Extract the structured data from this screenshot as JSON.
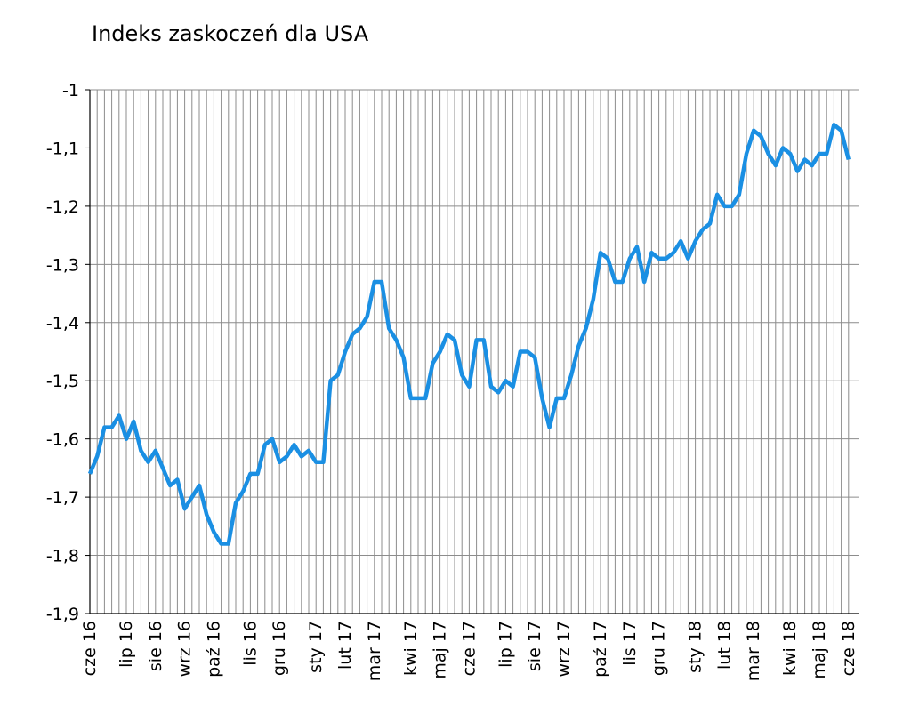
{
  "chart_data": {
    "type": "line",
    "title": "Indeks zaskoczeń dla USA",
    "categories": [
      "cze 16",
      null,
      null,
      null,
      null,
      "lip 16",
      null,
      null,
      null,
      "sie 16",
      null,
      null,
      null,
      "wrz 16",
      null,
      null,
      null,
      "paź 16",
      null,
      null,
      null,
      null,
      "lis 16",
      null,
      null,
      null,
      "gru 16",
      null,
      null,
      null,
      null,
      "sty 17",
      null,
      null,
      null,
      "lut 17",
      null,
      null,
      null,
      "mar 17",
      null,
      null,
      null,
      null,
      "kwi 17",
      null,
      null,
      null,
      "maj 17",
      null,
      null,
      null,
      "cze 17",
      null,
      null,
      null,
      null,
      "lip 17",
      null,
      null,
      null,
      "sie 17",
      null,
      null,
      null,
      "wrz 17",
      null,
      null,
      null,
      null,
      "paź 17",
      null,
      null,
      null,
      "lis 17",
      null,
      null,
      null,
      "gru 17",
      null,
      null,
      null,
      null,
      "sty 18",
      null,
      null,
      null,
      "lut 18",
      null,
      null,
      null,
      "mar 18",
      null,
      null,
      null,
      null,
      "kwi 18",
      null,
      null,
      null,
      "maj 18",
      null,
      null,
      null,
      "cze 18"
    ],
    "values": [
      -1.66,
      -1.63,
      -1.58,
      -1.58,
      -1.56,
      -1.6,
      -1.57,
      -1.62,
      -1.64,
      -1.62,
      -1.65,
      -1.68,
      -1.67,
      -1.72,
      -1.7,
      -1.68,
      -1.73,
      -1.76,
      -1.78,
      -1.78,
      -1.71,
      -1.69,
      -1.66,
      -1.66,
      -1.61,
      -1.6,
      -1.64,
      -1.63,
      -1.61,
      -1.63,
      -1.62,
      -1.64,
      -1.64,
      -1.5,
      -1.49,
      -1.45,
      -1.42,
      -1.41,
      -1.39,
      -1.33,
      -1.33,
      -1.41,
      -1.43,
      -1.46,
      -1.53,
      -1.53,
      -1.53,
      -1.47,
      -1.45,
      -1.42,
      -1.43,
      -1.49,
      -1.51,
      -1.43,
      -1.43,
      -1.51,
      -1.52,
      -1.5,
      -1.51,
      -1.45,
      -1.45,
      -1.46,
      -1.53,
      -1.58,
      -1.53,
      -1.53,
      -1.49,
      -1.44,
      -1.41,
      -1.36,
      -1.28,
      -1.29,
      -1.33,
      -1.33,
      -1.29,
      -1.27,
      -1.33,
      -1.28,
      -1.29,
      -1.29,
      -1.28,
      -1.26,
      -1.29,
      -1.26,
      -1.24,
      -1.23,
      -1.18,
      -1.2,
      -1.2,
      -1.18,
      -1.11,
      -1.07,
      -1.08,
      -1.11,
      -1.13,
      -1.1,
      -1.11,
      -1.14,
      -1.12,
      -1.13,
      -1.11,
      -1.11,
      -1.06,
      -1.07,
      -1.12
    ],
    "color": "#1a8fe3",
    "ylim": [
      -1.9,
      -1
    ],
    "yticks": [
      {
        "value": -1.9,
        "label": "-1,9"
      },
      {
        "value": -1.8,
        "label": "-1,8"
      },
      {
        "value": -1.7,
        "label": "-1,7"
      },
      {
        "value": -1.6,
        "label": "-1,6"
      },
      {
        "value": -1.5,
        "label": "-1,5"
      },
      {
        "value": -1.4,
        "label": "-1,4"
      },
      {
        "value": -1.3,
        "label": "-1,3"
      },
      {
        "value": -1.2,
        "label": "-1,2"
      },
      {
        "value": -1.1,
        "label": "-1,1"
      },
      -1
    ],
    "grid": true
  }
}
